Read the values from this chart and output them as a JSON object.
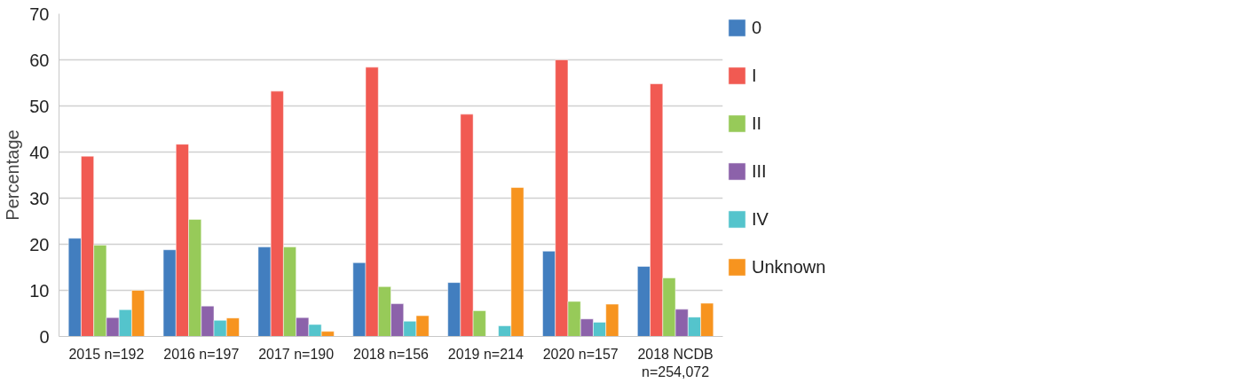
{
  "chart_data": {
    "type": "bar",
    "ylabel": "Percentage",
    "categories": [
      "2015 n=192",
      "2016 n=197",
      "2017 n=190",
      "2018 n=156",
      "2019 n=214",
      "2020 n=157",
      "2018 NCDB\nn=254,072"
    ],
    "series": [
      {
        "name": "0",
        "color": "#427ebf",
        "values": [
          21.3,
          18.8,
          19.4,
          16.0,
          11.7,
          18.5,
          15.2
        ]
      },
      {
        "name": "I",
        "color": "#f15a52",
        "values": [
          39.1,
          41.7,
          53.2,
          58.4,
          48.2,
          60.0,
          54.8
        ]
      },
      {
        "name": "II",
        "color": "#97ca59",
        "values": [
          19.8,
          25.4,
          19.4,
          10.8,
          5.6,
          7.6,
          12.7
        ]
      },
      {
        "name": "III",
        "color": "#8c62aa",
        "values": [
          4.1,
          6.6,
          4.1,
          7.1,
          null,
          3.8,
          5.9
        ]
      },
      {
        "name": "IV",
        "color": "#54c4cc",
        "values": [
          5.8,
          3.5,
          2.6,
          3.3,
          2.3,
          3.1,
          4.2
        ]
      },
      {
        "name": "Unknown",
        "color": "#f7941f",
        "values": [
          10.0,
          4.0,
          1.1,
          4.5,
          32.3,
          7.0,
          7.2
        ]
      }
    ],
    "ylim": [
      0,
      70
    ],
    "yticks": [
      0,
      10,
      20,
      30,
      40,
      50,
      60,
      70
    ],
    "grid": "y",
    "legend": "right"
  }
}
